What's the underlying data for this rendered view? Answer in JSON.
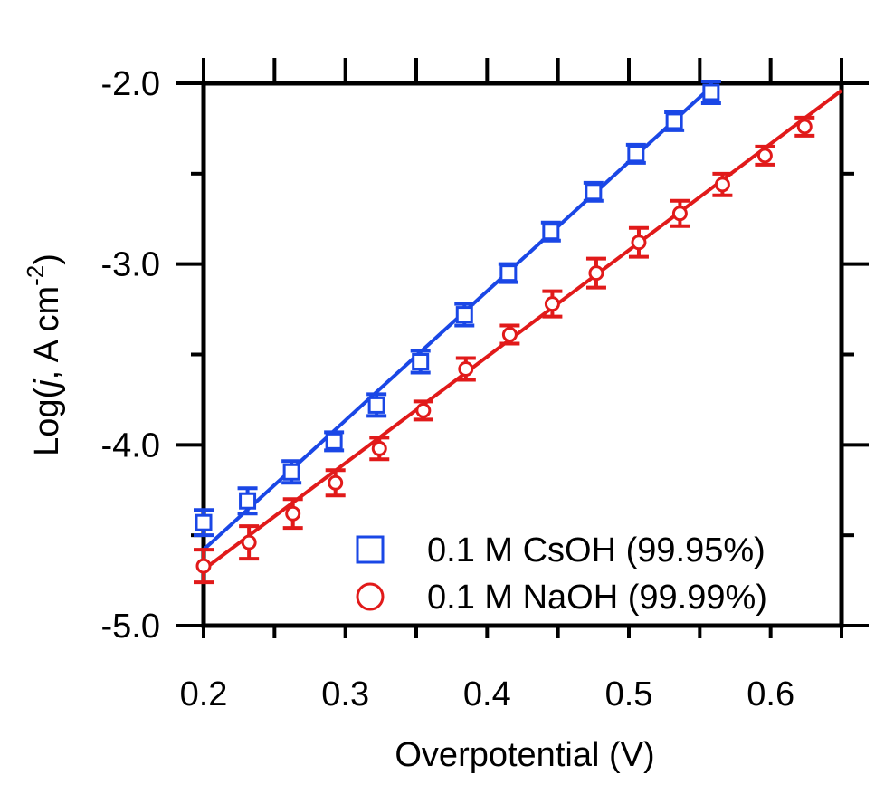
{
  "chart_data": {
    "type": "scatter",
    "xlabel": "Overpotential (V)",
    "ylabel": {
      "prefix": "Log(",
      "italic": "j",
      "middle": ", A cm",
      "superscript": "-2",
      "suffix": ")"
    },
    "xlim": [
      0.2,
      0.65
    ],
    "ylim": [
      -5.0,
      -2.0
    ],
    "x_ticks": [
      0.2,
      0.3,
      0.4,
      0.5,
      0.6
    ],
    "x_tick_labels": [
      "0.2",
      "0.3",
      "0.4",
      "0.5",
      "0.6"
    ],
    "y_ticks": [
      -2.0,
      -3.0,
      -4.0,
      -5.0
    ],
    "y_tick_labels": [
      "-2.0",
      "-3.0",
      "-4.0",
      "-5.0"
    ],
    "y_minor_ticks": [
      -2.5,
      -3.5,
      -4.5
    ],
    "grid": false,
    "legend_position": "bottom-right",
    "series": [
      {
        "name": "0.1 M CsOH (99.95%)",
        "marker": "square",
        "color": "#1a47e6",
        "x": [
          0.2,
          0.231,
          0.262,
          0.292,
          0.322,
          0.353,
          0.384,
          0.415,
          0.445,
          0.475,
          0.505,
          0.532,
          0.558
        ],
        "y": [
          -4.43,
          -4.31,
          -4.15,
          -3.98,
          -3.78,
          -3.54,
          -3.28,
          -3.05,
          -2.82,
          -2.6,
          -2.39,
          -2.21,
          -2.05
        ],
        "err": [
          0.07,
          0.07,
          0.06,
          0.05,
          0.06,
          0.06,
          0.06,
          0.05,
          0.05,
          0.05,
          0.05,
          0.05,
          0.06
        ],
        "fit": {
          "x": [
            0.2,
            0.558
          ],
          "y": [
            -4.58,
            -2.02
          ]
        }
      },
      {
        "name": "0.1 M NaOH (99.99%)",
        "marker": "circle",
        "color": "#e11a1a",
        "x": [
          0.2,
          0.232,
          0.263,
          0.293,
          0.324,
          0.355,
          0.385,
          0.416,
          0.446,
          0.477,
          0.507,
          0.536,
          0.566,
          0.596,
          0.624
        ],
        "y": [
          -4.67,
          -4.54,
          -4.38,
          -4.21,
          -4.02,
          -3.81,
          -3.58,
          -3.39,
          -3.22,
          -3.05,
          -2.88,
          -2.72,
          -2.56,
          -2.4,
          -2.24
        ],
        "err": [
          0.09,
          0.09,
          0.08,
          0.07,
          0.06,
          0.05,
          0.06,
          0.05,
          0.07,
          0.08,
          0.08,
          0.07,
          0.06,
          0.05,
          0.05
        ],
        "fit": {
          "x": [
            0.2,
            0.65
          ],
          "y": [
            -4.69,
            -2.04
          ]
        }
      }
    ]
  }
}
